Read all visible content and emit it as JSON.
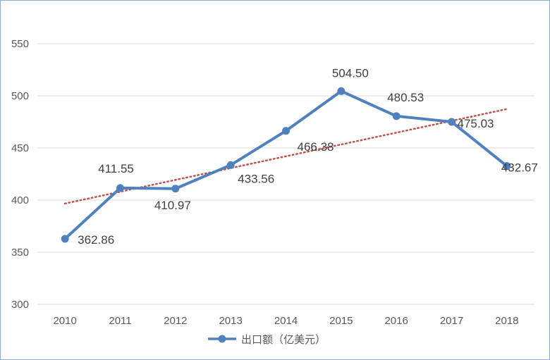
{
  "chart_data": {
    "type": "line",
    "title": "",
    "xlabel": "",
    "ylabel": "",
    "categories": [
      "2010",
      "2011",
      "2012",
      "2013",
      "2014",
      "2015",
      "2016",
      "2017",
      "2018"
    ],
    "series": [
      {
        "name": "出口额（亿美元）",
        "values": [
          362.86,
          411.55,
          410.97,
          433.56,
          466.38,
          504.5,
          480.53,
          475.03,
          432.67
        ],
        "labels": [
          "362.86",
          "411.55",
          "410.97",
          "433.56",
          "466.38",
          "504.50",
          "480.53",
          "475.03",
          "432.67"
        ],
        "color": "#4f81bd",
        "marker": "circle"
      }
    ],
    "trendline": {
      "type": "linear",
      "style": "dotted",
      "color": "#c0504d"
    },
    "ylim": [
      300,
      550
    ],
    "yticks": [
      "300",
      "350",
      "400",
      "450",
      "500",
      "550"
    ],
    "grid": true,
    "legend": "bottom"
  }
}
